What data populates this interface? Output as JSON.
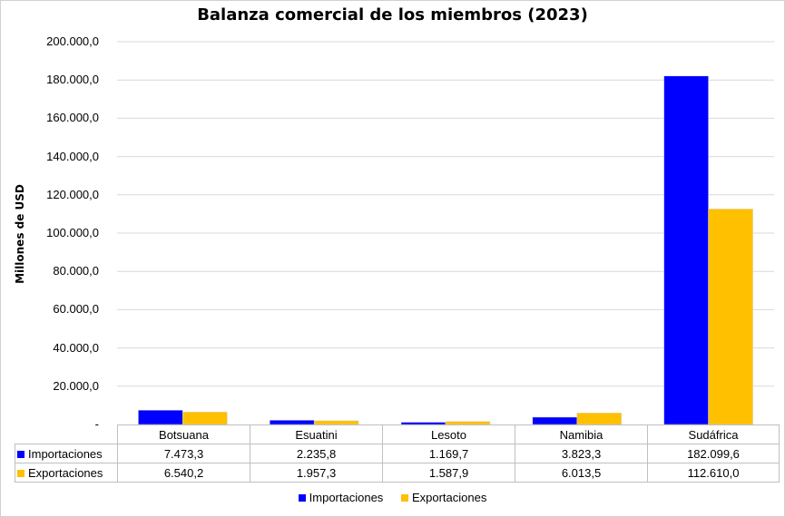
{
  "chart_data": {
    "type": "bar",
    "title": "Balanza comercial de los miembros (2023)",
    "ylabel": "Millones de USD",
    "xlabel": "",
    "ylim": [
      0,
      200000
    ],
    "yticks": [
      "-",
      "20.000,0",
      "40.000,0",
      "60.000,0",
      "80.000,0",
      "100.000,0",
      "120.000,0",
      "140.000,0",
      "160.000,0",
      "180.000,0",
      "200.000,0"
    ],
    "categories": [
      "Botsuana",
      "Esuatini",
      "Lesoto",
      "Namibia",
      "Sudáfrica"
    ],
    "series": [
      {
        "name": "Importaciones",
        "color": "#0000ff",
        "values": [
          7473.3,
          2235.8,
          1169.7,
          3823.3,
          182099.6
        ],
        "labels": [
          "7.473,3",
          "2.235,8",
          "1.169,7",
          "3.823,3",
          "182.099,6"
        ]
      },
      {
        "name": "Exportaciones",
        "color": "#ffc000",
        "values": [
          6540.2,
          1957.3,
          1587.9,
          6013.5,
          112610.0
        ],
        "labels": [
          "6.540,2",
          "1.957,3",
          "1.587,9",
          "6.013,5",
          "112.610,0"
        ]
      }
    ],
    "grid": true,
    "legend": "bottom",
    "data_table": true
  }
}
